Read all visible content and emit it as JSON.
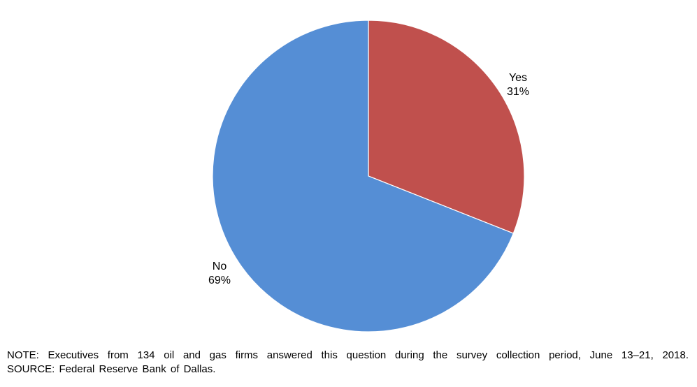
{
  "chart_data": {
    "type": "pie",
    "title": "",
    "slices": [
      {
        "label": "Yes",
        "value": 31,
        "value_label": "31%",
        "color": "#C0504D"
      },
      {
        "label": "No",
        "value": 69,
        "value_label": "69%",
        "color": "#558ED5"
      }
    ]
  },
  "footer": {
    "note": "NOTE: Executives from 134 oil and gas firms answered this question during the survey collection period, June 13–21, 2018.",
    "source": "SOURCE: Federal Reserve Bank of Dallas."
  }
}
